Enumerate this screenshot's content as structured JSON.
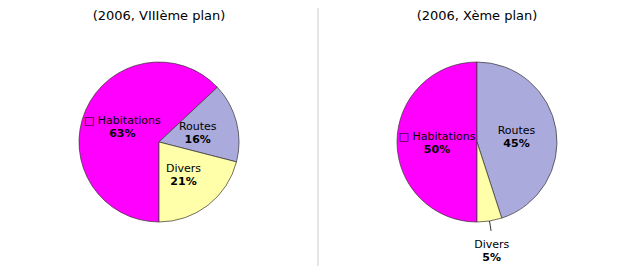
{
  "chart_data": [
    {
      "type": "pie",
      "title": "(2006, VIIIème plan)",
      "categories": [
        "□ Habitations",
        "Routes",
        "Divers"
      ],
      "values": [
        63,
        16,
        21
      ],
      "value_labels": [
        "63%",
        "16%",
        "21%"
      ],
      "colors": [
        "#FF00FF",
        "#AAAADD",
        "#FFFFAA"
      ],
      "data_labels": true
    },
    {
      "type": "pie",
      "title": "(2006, Xème plan)",
      "categories": [
        "□ Habitations",
        "Routes",
        "Divers"
      ],
      "values": [
        50,
        45,
        5
      ],
      "value_labels": [
        "50%",
        "45%",
        "5%"
      ],
      "colors": [
        "#FF00FF",
        "#AAAADD",
        "#FFFFAA"
      ],
      "data_labels": true
    }
  ]
}
